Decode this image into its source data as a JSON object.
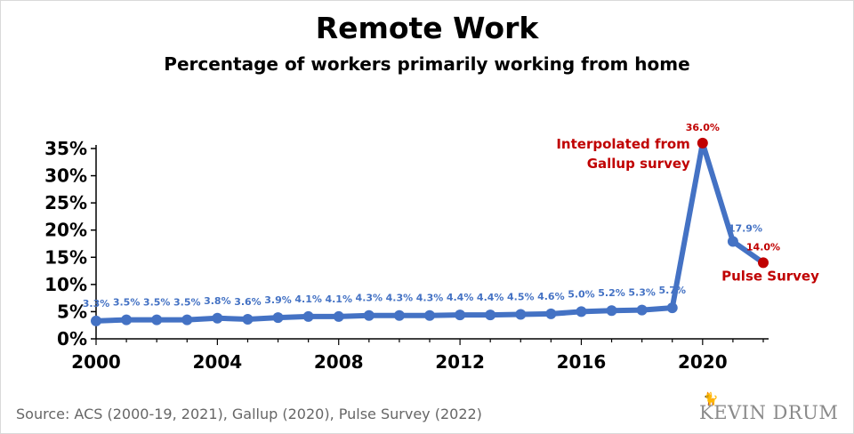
{
  "chart_data": {
    "type": "line",
    "title": "Remote Work",
    "subtitle": "Percentage of workers primarily working from home",
    "x": [
      2000,
      2001,
      2002,
      2003,
      2004,
      2005,
      2006,
      2007,
      2008,
      2009,
      2010,
      2011,
      2012,
      2013,
      2014,
      2015,
      2016,
      2017,
      2018,
      2019,
      2020,
      2021,
      2022
    ],
    "series": [
      {
        "values": [
          3.3,
          3.5,
          3.5,
          3.5,
          3.8,
          3.6,
          3.9,
          4.1,
          4.1,
          4.3,
          4.3,
          4.3,
          4.4,
          4.4,
          4.5,
          4.6,
          5.0,
          5.2,
          5.3,
          5.7,
          36.0,
          17.9,
          14.0
        ],
        "labels": [
          "3.3%",
          "3.5%",
          "3.5%",
          "3.5%",
          "3.8%",
          "3.6%",
          "3.9%",
          "4.1%",
          "4.1%",
          "4.3%",
          "4.3%",
          "4.3%",
          "4.4%",
          "4.4%",
          "4.5%",
          "4.6%",
          "5.0%",
          "5.2%",
          "5.3%",
          "5.7%",
          "36.0%",
          "17.9%",
          "14.0%"
        ]
      }
    ],
    "highlighted_points": [
      2020,
      2022
    ],
    "xticks": [
      2000,
      2004,
      2008,
      2012,
      2016,
      2020
    ],
    "xtick_labels": [
      "2000",
      "2004",
      "2008",
      "2012",
      "2016",
      "2020"
    ],
    "yticks": [
      0,
      5,
      10,
      15,
      20,
      25,
      30,
      35
    ],
    "ytick_labels": [
      "0%",
      "5%",
      "10%",
      "15%",
      "20%",
      "25%",
      "30%",
      "35%"
    ],
    "ylim": [
      0,
      35
    ],
    "xlim": [
      2000,
      2022
    ],
    "grid": false,
    "annotations": [
      {
        "x": 2020,
        "lines": [
          "Interpolated from",
          "Gallup survey"
        ]
      },
      {
        "x": 2022,
        "lines": [
          "Pulse Survey"
        ]
      }
    ],
    "colors": {
      "line": "#4472c4",
      "highlight": "#c00000",
      "label": "#4472c4"
    }
  },
  "source": "Source: ACS (2000-19, 2021), Gallup (2020), Pulse Survey (2022)",
  "logo": "KEVIN DRUM"
}
